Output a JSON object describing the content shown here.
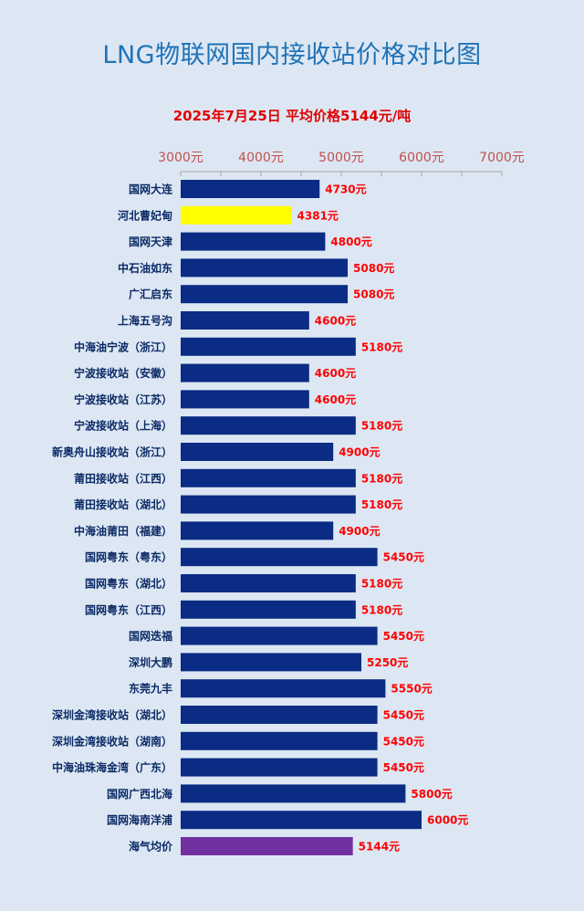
{
  "chart_data": {
    "type": "bar",
    "orientation": "horizontal",
    "title": "LNG物联网国内接收站价格对比图",
    "subtitle": "2025年7月25日 平均价格5144元/吨",
    "x_axis_position": "top",
    "xlim": [
      3000,
      7000
    ],
    "xticks": [
      "3000元",
      "4000元",
      "5000元",
      "6000元",
      "7000元"
    ],
    "tick_values": [
      3000,
      4000,
      5000,
      6000,
      7000
    ],
    "value_suffix": "元",
    "categories": [
      "国网大连",
      "河北曹妃甸",
      "国网天津",
      "中石油如东",
      "广汇启东",
      "上海五号沟",
      "中海油宁波（浙江）",
      "宁波接收站（安徽）",
      "宁波接收站（江苏）",
      "宁波接收站（上海）",
      "新奥舟山接收站（浙江）",
      "莆田接收站（江西）",
      "莆田接收站（湖北）",
      "中海油莆田（福建）",
      "国网粤东（粤东）",
      "国网粤东（湖北）",
      "国网粤东（江西）",
      "国网迭福",
      "深圳大鹏",
      "东莞九丰",
      "深圳金湾接收站（湖北）",
      "深圳金湾接收站（湖南）",
      "中海油珠海金湾（广东）",
      "国网广西北海",
      "国网海南洋浦",
      "海气均价"
    ],
    "values": [
      4730,
      4381,
      4800,
      5080,
      5080,
      4600,
      5180,
      4600,
      4600,
      5180,
      4900,
      5180,
      5180,
      4900,
      5450,
      5180,
      5180,
      5450,
      5250,
      5550,
      5450,
      5450,
      5450,
      5800,
      6000,
      5144
    ],
    "colors": {
      "default": "#0a2c84",
      "highlight": "#ffff00",
      "average": "#7030a0",
      "label": "#ff0000",
      "category": "#0b2a66",
      "tick": "#c0504d",
      "axis": "#a6a6a6"
    },
    "highlight_index": 1,
    "average_index": 25,
    "grid": false,
    "legend": "none"
  }
}
